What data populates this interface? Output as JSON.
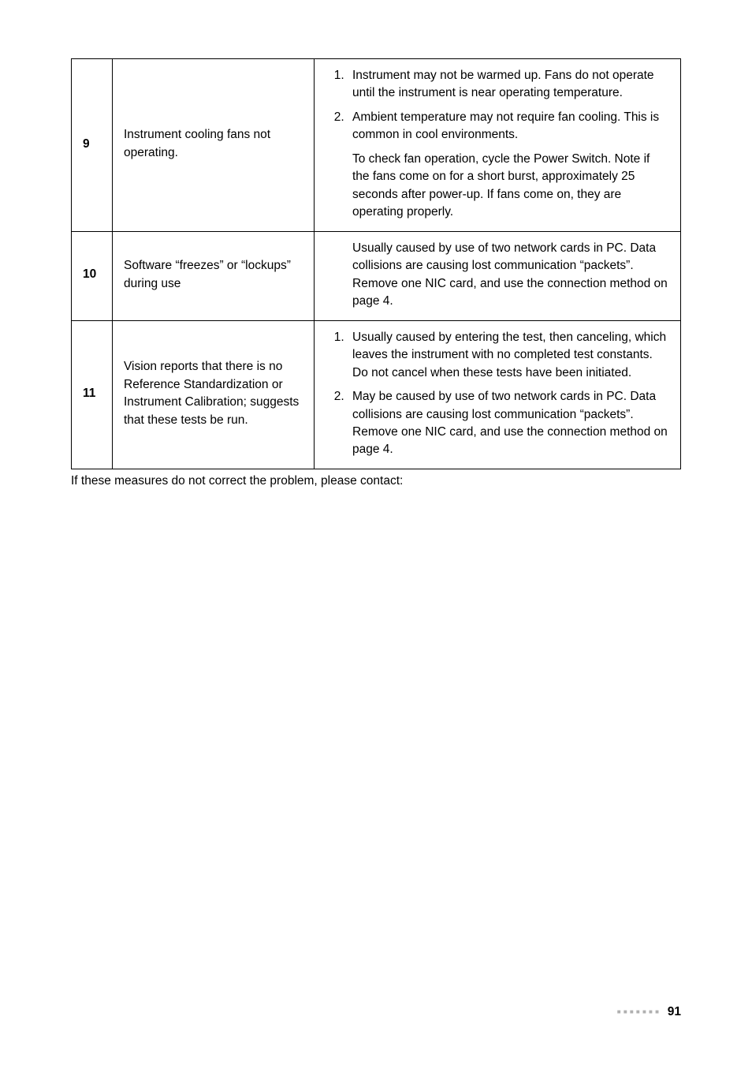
{
  "rows": [
    {
      "id": "9",
      "issue": "Instrument cooling fans not operating.",
      "type": "numbered_with_trailing",
      "items": [
        "Instrument may not be warmed up. Fans do not operate until the instrument is near operating temperature.",
        "Ambient temperature may not require fan cooling. This is common in cool environments."
      ],
      "trailing": "To check fan operation, cycle the Power Switch. Note if the fans come on for a short burst, approximately 25 seconds after power-up. If fans come on, they are operating properly."
    },
    {
      "id": "10",
      "issue": "Software “freezes” or “lockups” during use",
      "type": "plain",
      "text": "Usually caused by use of two network cards in PC. Data collisions are causing lost communication “packets”. Remove one NIC card, and use the connection method on page 4."
    },
    {
      "id": "11",
      "issue": "Vision reports that there is no Reference Standardization or Instrument Calibration; suggests that these tests be run.",
      "type": "numbered",
      "items": [
        "Usually caused by entering the test, then canceling, which leaves the instrument with no completed test constants. Do not cancel when these tests have been initiated.",
        "May be caused by use of two network cards in PC. Data collisions are causing lost communication “packets”. Remove one NIC card, and use the connection method on page 4."
      ]
    }
  ],
  "footnote": "If these measures do not correct the problem, please contact:",
  "page_number": "91"
}
